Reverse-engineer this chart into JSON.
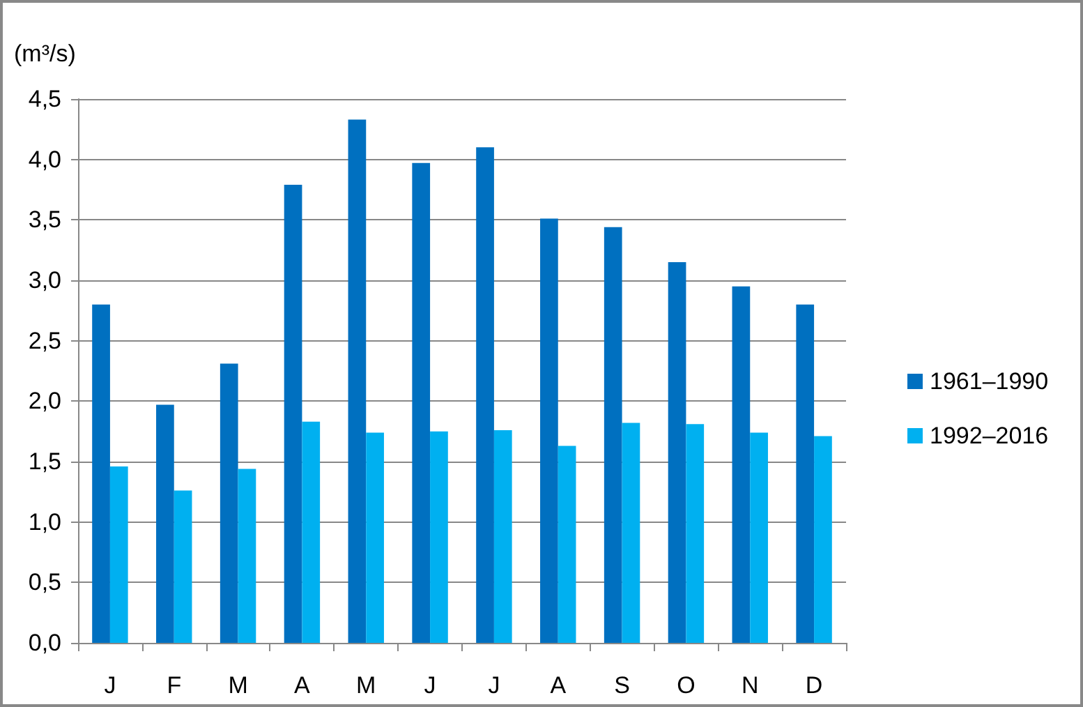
{
  "chart_data": {
    "type": "bar",
    "ylabel": "(m³/s)",
    "categories": [
      "J",
      "F",
      "M",
      "A",
      "M",
      "J",
      "J",
      "A",
      "S",
      "O",
      "N",
      "D"
    ],
    "series": [
      {
        "name": "1961–1990",
        "color": "#0070c0",
        "values": [
          2.8,
          1.97,
          2.31,
          3.79,
          4.33,
          3.97,
          4.1,
          3.51,
          3.44,
          3.15,
          2.95,
          2.8
        ]
      },
      {
        "name": "1992–2016",
        "color": "#00b0f0",
        "values": [
          1.46,
          1.26,
          1.44,
          1.83,
          1.74,
          1.75,
          1.76,
          1.63,
          1.82,
          1.81,
          1.74,
          1.71
        ]
      }
    ],
    "ylim": [
      0,
      4.5
    ],
    "yticks": [
      {
        "value": 0,
        "label": "0,0"
      },
      {
        "value": 0.5,
        "label": "0,5"
      },
      {
        "value": 1,
        "label": "1,0"
      },
      {
        "value": 1.5,
        "label": "1,5"
      },
      {
        "value": 2,
        "label": "2,0"
      },
      {
        "value": 2.5,
        "label": "2,5"
      },
      {
        "value": 3,
        "label": "3,0"
      },
      {
        "value": 3.5,
        "label": "3,5"
      },
      {
        "value": 4,
        "label": "4,0"
      },
      {
        "value": 4.5,
        "label": "4,5"
      }
    ],
    "grid": "y",
    "legend": "right"
  }
}
